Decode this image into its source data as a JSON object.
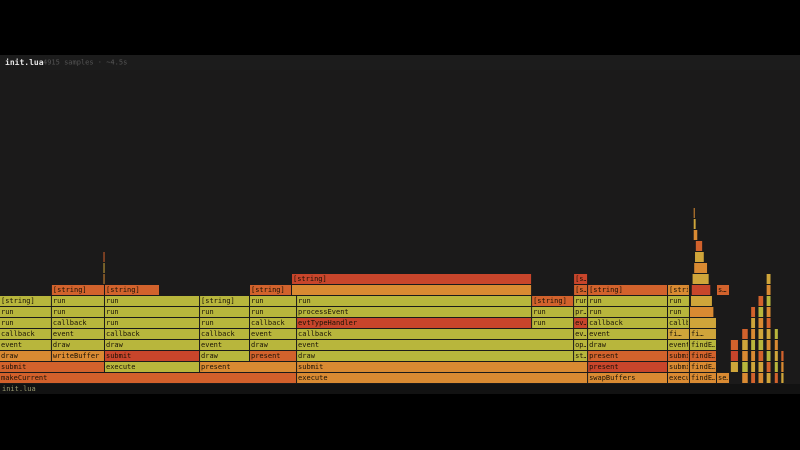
{
  "header": {
    "title": "init.lua",
    "summary": "4915 samples · ~4.5s"
  },
  "status": "init.lua",
  "flame": {
    "total_samples": 4915,
    "frames": [
      {
        "name": "makeCurrent",
        "depth": 0,
        "start": 0,
        "samples": 1825,
        "color": "#d2602b"
      },
      {
        "name": "execute",
        "depth": 0,
        "start": 1825,
        "samples": 1788,
        "color": "#d98a32"
      },
      {
        "name": "swapBuffers",
        "depth": 0,
        "start": 3613,
        "samples": 491,
        "color": "#d98a32"
      },
      {
        "name": "execu…",
        "depth": 0,
        "start": 4104,
        "samples": 135,
        "color": "#d98a32"
      },
      {
        "name": "findE…",
        "depth": 0,
        "start": 4239,
        "samples": 166,
        "color": "#d98a32"
      },
      {
        "name": "se…",
        "depth": 0,
        "start": 4405,
        "samples": 80,
        "color": "#d98a32"
      },
      {
        "name": "submit",
        "depth": 1,
        "start": 0,
        "samples": 645,
        "color": "#d2622c"
      },
      {
        "name": "execute",
        "depth": 1,
        "start": 645,
        "samples": 584,
        "color": "#b8b63c"
      },
      {
        "name": "present",
        "depth": 1,
        "start": 1229,
        "samples": 596,
        "color": "#d98a32"
      },
      {
        "name": "submit",
        "depth": 1,
        "start": 1825,
        "samples": 1788,
        "color": "#d98a32"
      },
      {
        "name": "present",
        "depth": 1,
        "start": 3613,
        "samples": 491,
        "color": "#c8452b"
      },
      {
        "name": "submit",
        "depth": 1,
        "start": 4104,
        "samples": 135,
        "color": "#d98a32"
      },
      {
        "name": "findE…",
        "depth": 1,
        "start": 4239,
        "samples": 166,
        "color": "#d98a32"
      },
      {
        "name": "draw",
        "depth": 2,
        "start": 0,
        "samples": 319,
        "color": "#d98a32"
      },
      {
        "name": "writeBuffer",
        "depth": 2,
        "start": 319,
        "samples": 326,
        "color": "#d98a32"
      },
      {
        "name": "submit",
        "depth": 2,
        "start": 645,
        "samples": 584,
        "color": "#c8452b"
      },
      {
        "name": "draw",
        "depth": 2,
        "start": 1229,
        "samples": 307,
        "color": "#b8b63c"
      },
      {
        "name": "present",
        "depth": 2,
        "start": 1536,
        "samples": 289,
        "color": "#d2622c"
      },
      {
        "name": "draw",
        "depth": 2,
        "start": 1825,
        "samples": 1702,
        "color": "#b8b63c"
      },
      {
        "name": "st…",
        "depth": 2,
        "start": 3527,
        "samples": 86,
        "color": "#b8b63c"
      },
      {
        "name": "present",
        "depth": 2,
        "start": 3613,
        "samples": 491,
        "color": "#d2622c"
      },
      {
        "name": "submit",
        "depth": 2,
        "start": 4104,
        "samples": 135,
        "color": "#d2622c"
      },
      {
        "name": "findE…",
        "depth": 2,
        "start": 4239,
        "samples": 166,
        "color": "#d2622c"
      },
      {
        "name": "event",
        "depth": 3,
        "start": 0,
        "samples": 319,
        "color": "#b8b63c"
      },
      {
        "name": "draw",
        "depth": 3,
        "start": 319,
        "samples": 326,
        "color": "#b8b63c"
      },
      {
        "name": "draw",
        "depth": 3,
        "start": 645,
        "samples": 584,
        "color": "#b8b63c"
      },
      {
        "name": "event",
        "depth": 3,
        "start": 1229,
        "samples": 307,
        "color": "#b8b63c"
      },
      {
        "name": "draw",
        "depth": 3,
        "start": 1536,
        "samples": 289,
        "color": "#b8b63c"
      },
      {
        "name": "event",
        "depth": 3,
        "start": 1825,
        "samples": 1702,
        "color": "#b8b63c"
      },
      {
        "name": "op…",
        "depth": 3,
        "start": 3527,
        "samples": 86,
        "color": "#b8b63c"
      },
      {
        "name": "draw",
        "depth": 3,
        "start": 3613,
        "samples": 491,
        "color": "#b8b63c"
      },
      {
        "name": "event",
        "depth": 3,
        "start": 4104,
        "samples": 135,
        "color": "#b8b63c"
      },
      {
        "name": "findE…",
        "depth": 3,
        "start": 4239,
        "samples": 166,
        "color": "#b8b63c"
      },
      {
        "name": "callback",
        "depth": 4,
        "start": 0,
        "samples": 319,
        "color": "#b8b63c"
      },
      {
        "name": "event",
        "depth": 4,
        "start": 319,
        "samples": 326,
        "color": "#b8b63c"
      },
      {
        "name": "callback",
        "depth": 4,
        "start": 645,
        "samples": 584,
        "color": "#b8b63c"
      },
      {
        "name": "callback",
        "depth": 4,
        "start": 1229,
        "samples": 307,
        "color": "#b8b63c"
      },
      {
        "name": "event",
        "depth": 4,
        "start": 1536,
        "samples": 289,
        "color": "#b8b63c"
      },
      {
        "name": "callback",
        "depth": 4,
        "start": 1825,
        "samples": 1702,
        "color": "#b8b63c"
      },
      {
        "name": "ev…",
        "depth": 4,
        "start": 3527,
        "samples": 86,
        "color": "#b8b63c"
      },
      {
        "name": "event",
        "depth": 4,
        "start": 3613,
        "samples": 491,
        "color": "#b8b63c"
      },
      {
        "name": "fi…",
        "depth": 4,
        "start": 4104,
        "samples": 135,
        "color": "#cfa53a"
      },
      {
        "name": "fi…",
        "depth": 4,
        "start": 4239,
        "samples": 166,
        "color": "#cfa53a"
      },
      {
        "name": "run",
        "depth": 5,
        "start": 0,
        "samples": 319,
        "color": "#b8b63c"
      },
      {
        "name": "callback",
        "depth": 5,
        "start": 319,
        "samples": 326,
        "color": "#b8b63c"
      },
      {
        "name": "run",
        "depth": 5,
        "start": 645,
        "samples": 584,
        "color": "#b8b63c"
      },
      {
        "name": "run",
        "depth": 5,
        "start": 1229,
        "samples": 307,
        "color": "#b8b63c"
      },
      {
        "name": "callback",
        "depth": 5,
        "start": 1536,
        "samples": 289,
        "color": "#b8b63c"
      },
      {
        "name": "evtTypeHandler",
        "depth": 5,
        "start": 1825,
        "samples": 1444,
        "color": "#c8452b"
      },
      {
        "name": "run",
        "depth": 5,
        "start": 3269,
        "samples": 258,
        "color": "#b8b63c"
      },
      {
        "name": "ev…",
        "depth": 5,
        "start": 3527,
        "samples": 86,
        "color": "#c8452b"
      },
      {
        "name": "callback",
        "depth": 5,
        "start": 3613,
        "samples": 491,
        "color": "#b8b63c"
      },
      {
        "name": "callback",
        "depth": 5,
        "start": 4104,
        "samples": 135,
        "color": "#b8b63c"
      },
      {
        "depth": 5,
        "start": 4239,
        "samples": 166,
        "color": "#cfa53a"
      },
      {
        "name": "run",
        "depth": 6,
        "start": 0,
        "samples": 319,
        "color": "#b8b63c"
      },
      {
        "name": "run",
        "depth": 6,
        "start": 319,
        "samples": 326,
        "color": "#b8b63c"
      },
      {
        "name": "run",
        "depth": 6,
        "start": 645,
        "samples": 584,
        "color": "#b8b63c"
      },
      {
        "name": "run",
        "depth": 6,
        "start": 1229,
        "samples": 307,
        "color": "#b8b63c"
      },
      {
        "name": "run",
        "depth": 6,
        "start": 1536,
        "samples": 289,
        "color": "#b8b63c"
      },
      {
        "name": "processEvent",
        "depth": 6,
        "start": 1825,
        "samples": 1444,
        "color": "#b8b63c"
      },
      {
        "name": "run",
        "depth": 6,
        "start": 3269,
        "samples": 258,
        "color": "#b8b63c"
      },
      {
        "name": "pr…",
        "depth": 6,
        "start": 3527,
        "samples": 86,
        "color": "#b8b63c"
      },
      {
        "name": "run",
        "depth": 6,
        "start": 3613,
        "samples": 491,
        "color": "#b8b63c"
      },
      {
        "name": "run",
        "depth": 6,
        "start": 4104,
        "samples": 135,
        "color": "#b8b63c"
      },
      {
        "depth": 6,
        "start": 4239,
        "samples": 150,
        "color": "#d98a32"
      },
      {
        "name": "[string]",
        "depth": 7,
        "start": 0,
        "samples": 319,
        "color": "#b8b63c"
      },
      {
        "name": "run",
        "depth": 7,
        "start": 319,
        "samples": 326,
        "color": "#b8b63c"
      },
      {
        "name": "run",
        "depth": 7,
        "start": 645,
        "samples": 584,
        "color": "#b8b63c"
      },
      {
        "name": "[string]",
        "depth": 7,
        "start": 1229,
        "samples": 307,
        "color": "#b8b63c"
      },
      {
        "name": "run",
        "depth": 7,
        "start": 1536,
        "samples": 289,
        "color": "#b8b63c"
      },
      {
        "name": "run",
        "depth": 7,
        "start": 1825,
        "samples": 1444,
        "color": "#b8b63c"
      },
      {
        "name": "[string]",
        "depth": 7,
        "start": 3269,
        "samples": 258,
        "color": "#d2622c"
      },
      {
        "name": "run",
        "depth": 7,
        "start": 3527,
        "samples": 86,
        "color": "#b8b63c"
      },
      {
        "name": "run",
        "depth": 7,
        "start": 3613,
        "samples": 491,
        "color": "#b8b63c"
      },
      {
        "name": "run",
        "depth": 7,
        "start": 4104,
        "samples": 135,
        "color": "#b8b63c"
      },
      {
        "depth": 7,
        "start": 4245,
        "samples": 135,
        "color": "#cfa53a"
      },
      {
        "name": "[string]",
        "depth": 8,
        "start": 319,
        "samples": 326,
        "color": "#d2622c"
      },
      {
        "name": "[string]",
        "depth": 8,
        "start": 645,
        "samples": 338,
        "color": "#d2622c"
      },
      {
        "name": "[string]",
        "depth": 8,
        "start": 1536,
        "samples": 258,
        "color": "#d2622c"
      },
      {
        "depth": 8,
        "start": 1794,
        "samples": 1475,
        "color": "#d98a32"
      },
      {
        "name": "[s…",
        "depth": 8,
        "start": 3527,
        "samples": 86,
        "color": "#d2622c"
      },
      {
        "name": "[string]",
        "depth": 8,
        "start": 3613,
        "samples": 491,
        "color": "#d2622c"
      },
      {
        "name": "[stri…",
        "depth": 8,
        "start": 4104,
        "samples": 135,
        "color": "#d98a32"
      },
      {
        "depth": 8,
        "start": 4250,
        "samples": 120,
        "color": "#c8452b"
      },
      {
        "name": "s…",
        "depth": 8,
        "start": 4405,
        "samples": 80,
        "color": "#d2622c"
      },
      {
        "name": "[string]",
        "depth": 9,
        "start": 1794,
        "samples": 1475,
        "color": "#c8452b"
      },
      {
        "name": "[s…",
        "depth": 9,
        "start": 3527,
        "samples": 86,
        "color": "#c8452b"
      },
      {
        "depth": 9,
        "start": 4255,
        "samples": 105,
        "color": "#cfa53a"
      },
      {
        "depth": 9,
        "start": 636,
        "samples": 12,
        "color": "#d98a32"
      },
      {
        "depth": 10,
        "start": 636,
        "samples": 12,
        "color": "#cfa53a"
      },
      {
        "depth": 11,
        "start": 636,
        "samples": 12,
        "color": "#d2622c"
      },
      {
        "depth": 10,
        "start": 4265,
        "samples": 85,
        "color": "#d98a32"
      },
      {
        "depth": 11,
        "start": 4270,
        "samples": 60,
        "color": "#cfa53a"
      },
      {
        "depth": 12,
        "start": 4275,
        "samples": 45,
        "color": "#d2622c"
      },
      {
        "depth": 13,
        "start": 4262,
        "samples": 28,
        "color": "#d98a32"
      },
      {
        "depth": 14,
        "start": 4262,
        "samples": 18,
        "color": "#cfa53a"
      },
      {
        "depth": 15,
        "start": 4262,
        "samples": 12,
        "color": "#d98a32"
      },
      {
        "depth": 1,
        "start": 4490,
        "samples": 50,
        "color": "#cfa53a"
      },
      {
        "depth": 2,
        "start": 4490,
        "samples": 50,
        "color": "#c8452b"
      },
      {
        "depth": 3,
        "start": 4490,
        "samples": 50,
        "color": "#d2622c"
      },
      {
        "depth": 0,
        "start": 4560,
        "samples": 40,
        "color": "#d98a32"
      },
      {
        "depth": 1,
        "start": 4560,
        "samples": 40,
        "color": "#b8b63c"
      },
      {
        "depth": 2,
        "start": 4560,
        "samples": 40,
        "color": "#d98a32"
      },
      {
        "depth": 3,
        "start": 4560,
        "samples": 40,
        "color": "#cfa53a"
      },
      {
        "depth": 4,
        "start": 4560,
        "samples": 40,
        "color": "#d2622c"
      },
      {
        "depth": 0,
        "start": 4615,
        "samples": 30,
        "color": "#d2622c"
      },
      {
        "depth": 1,
        "start": 4615,
        "samples": 30,
        "color": "#cfa53a"
      },
      {
        "depth": 2,
        "start": 4615,
        "samples": 30,
        "color": "#d98a32"
      },
      {
        "depth": 3,
        "start": 4615,
        "samples": 30,
        "color": "#b8b63c"
      },
      {
        "depth": 4,
        "start": 4615,
        "samples": 30,
        "color": "#d98a32"
      },
      {
        "depth": 5,
        "start": 4615,
        "samples": 30,
        "color": "#cfa53a"
      },
      {
        "depth": 6,
        "start": 4615,
        "samples": 30,
        "color": "#d2622c"
      },
      {
        "depth": 0,
        "start": 4660,
        "samples": 35,
        "color": "#d98a32"
      },
      {
        "depth": 1,
        "start": 4660,
        "samples": 35,
        "color": "#cfa53a"
      },
      {
        "depth": 2,
        "start": 4660,
        "samples": 35,
        "color": "#d2622c"
      },
      {
        "depth": 3,
        "start": 4660,
        "samples": 35,
        "color": "#b8b63c"
      },
      {
        "depth": 4,
        "start": 4660,
        "samples": 35,
        "color": "#cfa53a"
      },
      {
        "depth": 5,
        "start": 4660,
        "samples": 35,
        "color": "#d98a32"
      },
      {
        "depth": 6,
        "start": 4660,
        "samples": 35,
        "color": "#b8b63c"
      },
      {
        "depth": 7,
        "start": 4660,
        "samples": 35,
        "color": "#d2622c"
      },
      {
        "depth": 0,
        "start": 4710,
        "samples": 30,
        "color": "#cfa53a"
      },
      {
        "depth": 1,
        "start": 4710,
        "samples": 30,
        "color": "#d2622c"
      },
      {
        "depth": 2,
        "start": 4710,
        "samples": 30,
        "color": "#b8b63c"
      },
      {
        "depth": 3,
        "start": 4710,
        "samples": 30,
        "color": "#d98a32"
      },
      {
        "depth": 4,
        "start": 4710,
        "samples": 30,
        "color": "#cfa53a"
      },
      {
        "depth": 5,
        "start": 4710,
        "samples": 30,
        "color": "#d2622c"
      },
      {
        "depth": 6,
        "start": 4710,
        "samples": 30,
        "color": "#d98a32"
      },
      {
        "depth": 7,
        "start": 4710,
        "samples": 30,
        "color": "#b8b63c"
      },
      {
        "depth": 8,
        "start": 4710,
        "samples": 30,
        "color": "#d98a32"
      },
      {
        "depth": 9,
        "start": 4710,
        "samples": 30,
        "color": "#cfa53a"
      },
      {
        "depth": 0,
        "start": 4760,
        "samples": 25,
        "color": "#d2622c"
      },
      {
        "depth": 1,
        "start": 4760,
        "samples": 25,
        "color": "#b8b63c"
      },
      {
        "depth": 2,
        "start": 4760,
        "samples": 25,
        "color": "#cfa53a"
      },
      {
        "depth": 3,
        "start": 4760,
        "samples": 25,
        "color": "#d98a32"
      },
      {
        "depth": 4,
        "start": 4760,
        "samples": 25,
        "color": "#b8b63c"
      },
      {
        "depth": 0,
        "start": 4800,
        "samples": 20,
        "color": "#cfa53a"
      },
      {
        "depth": 1,
        "start": 4800,
        "samples": 20,
        "color": "#d98a32"
      },
      {
        "depth": 2,
        "start": 4800,
        "samples": 20,
        "color": "#d2622c"
      }
    ]
  }
}
